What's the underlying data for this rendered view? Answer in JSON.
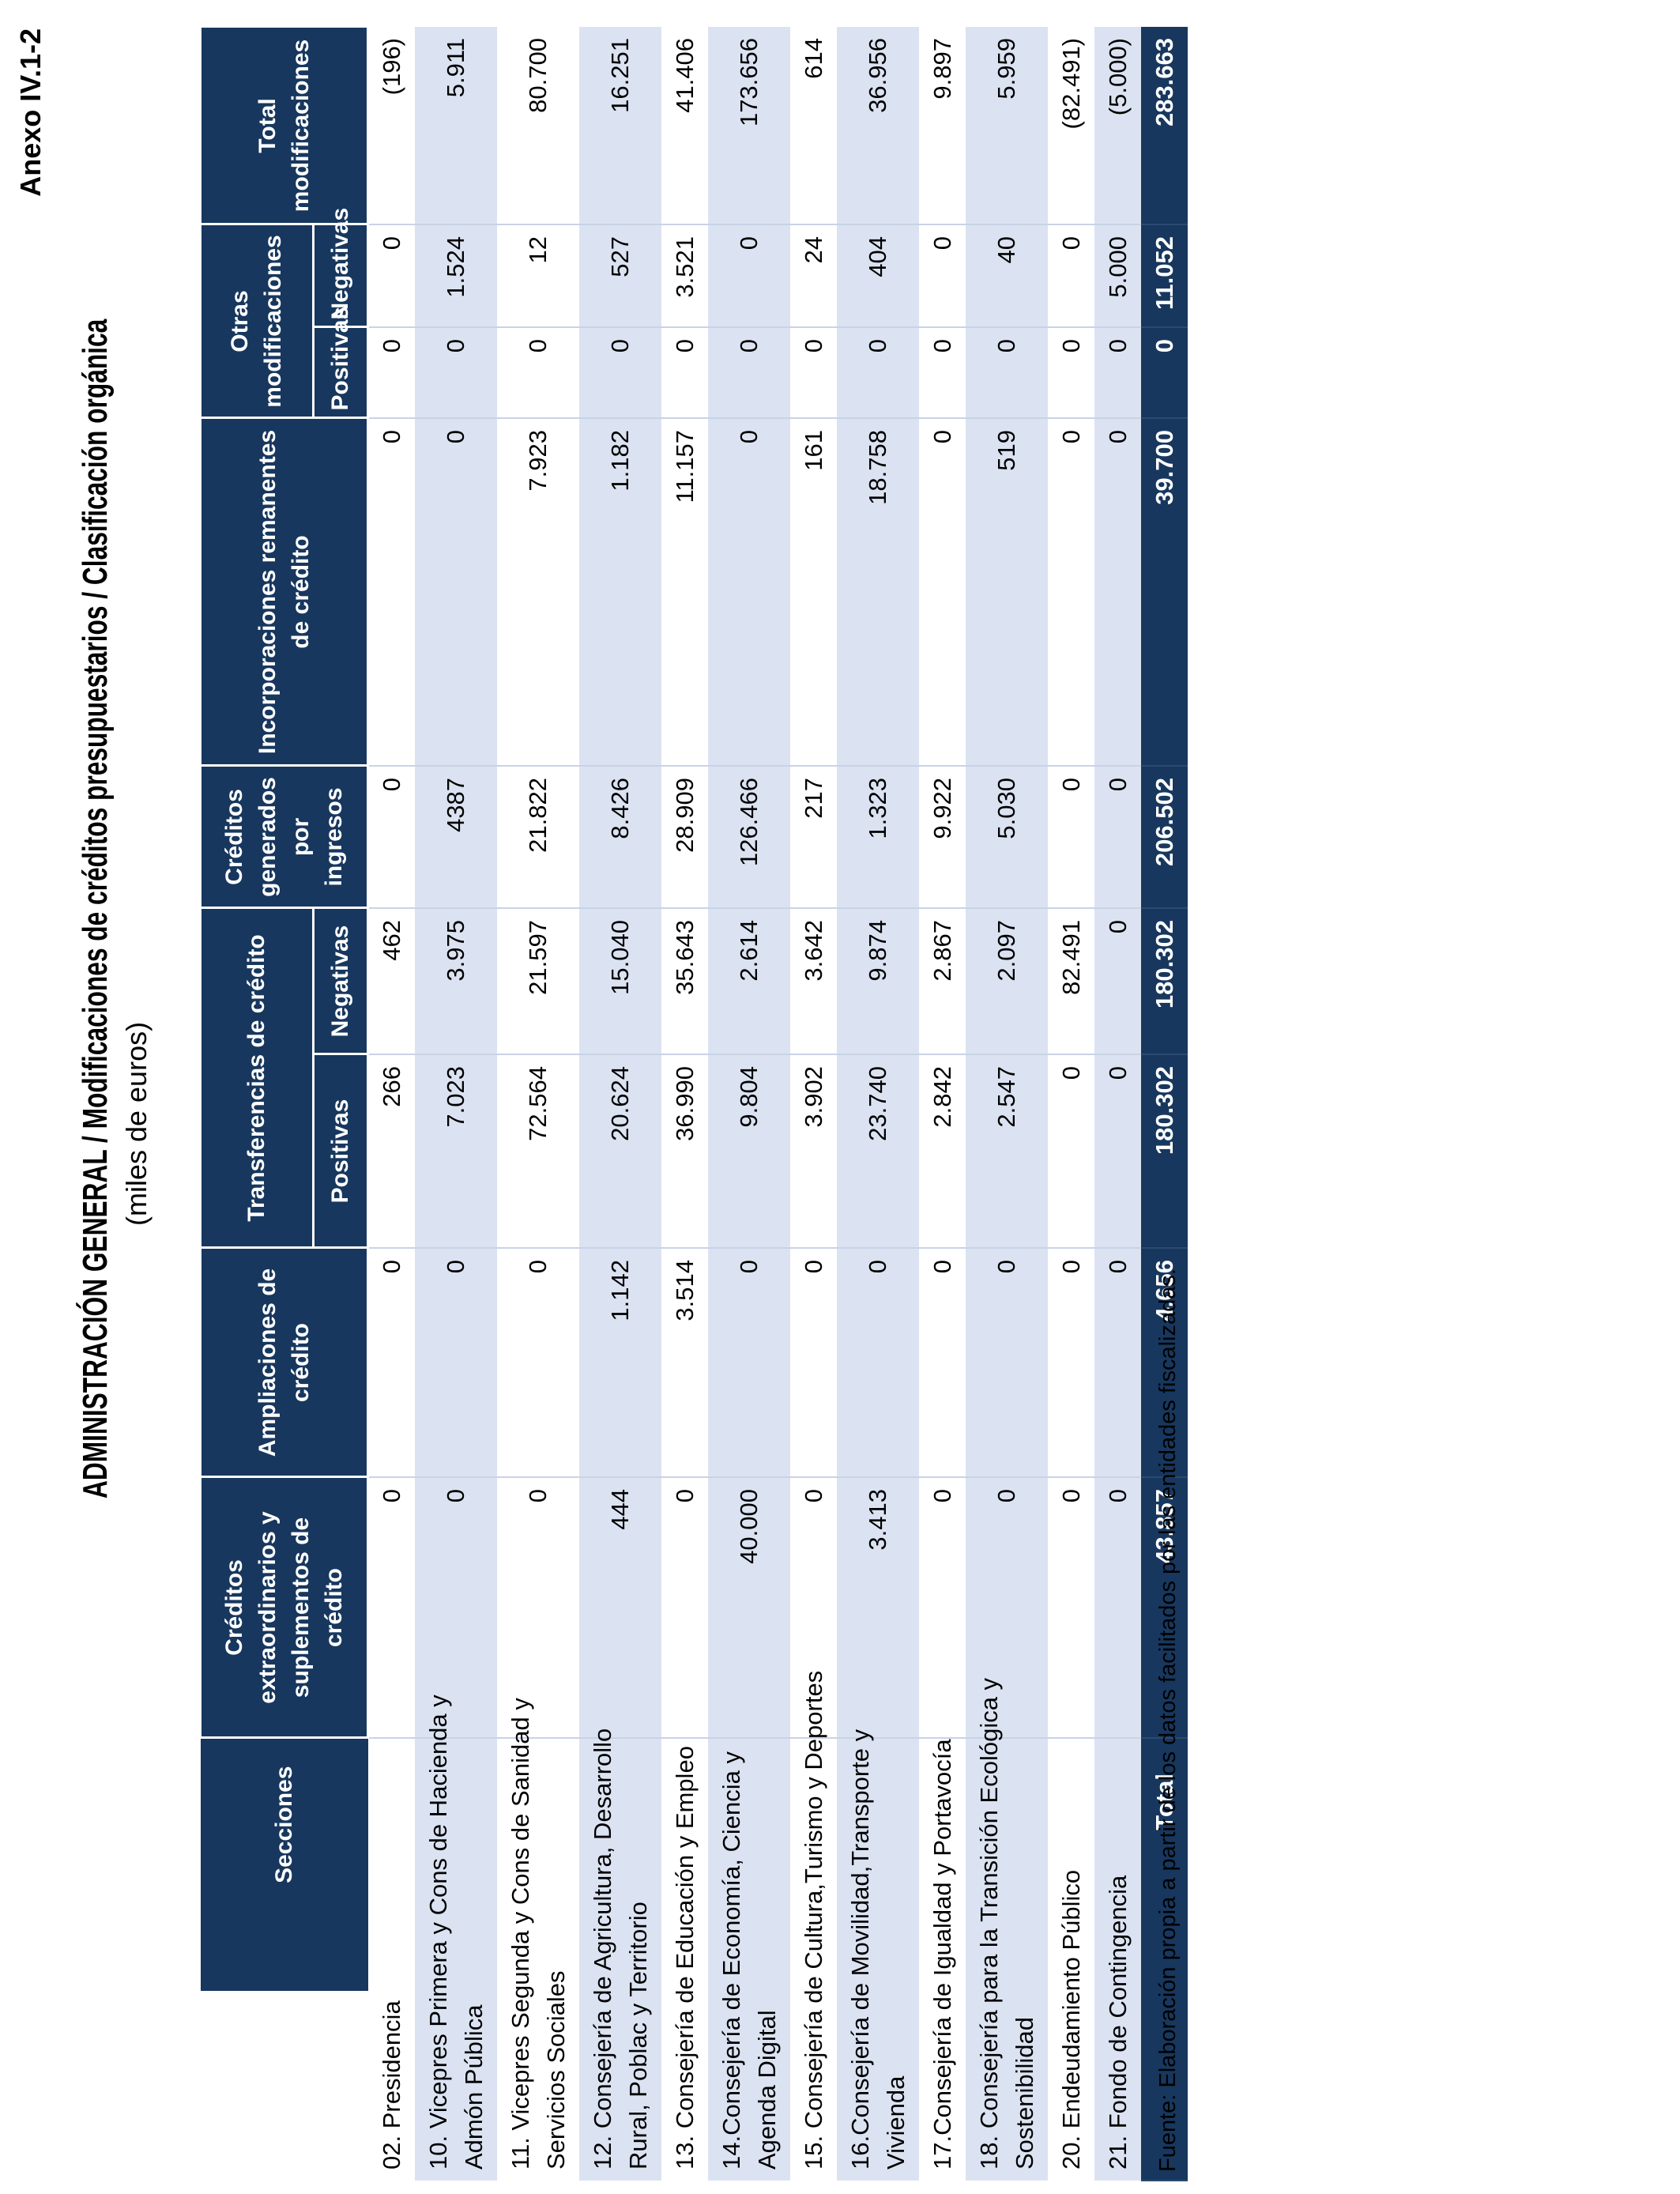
{
  "page": {
    "anexo": "Anexo IV.1-2",
    "title": "ADMINISTRACIÓN GENERAL  /  Modificaciones de créditos presupuestarios  /  Clasificación orgánica",
    "subtitle": "(miles de euros)",
    "footer": "Fuente: Elaboración propia a partir de los datos facilitados por las entidades fiscalizadas."
  },
  "colors": {
    "navy": "#17375e",
    "row_alt": "#dbe3f2",
    "grid": "#c9d3e6"
  },
  "table": {
    "headers": {
      "secciones": "Secciones",
      "cred_ext": "Créditos extraordinarios y suplementos de crédito",
      "ampliaciones": "Ampliaciones de crédito",
      "transferencias": "Transferencias de crédito",
      "cred_gen": "Créditos generados por ingresos",
      "incorporaciones": "Incorporaciones remanentes de crédito",
      "otras": "Otras modificaciones",
      "total": "Total modificaciones",
      "sub_positivas": "Positivas",
      "sub_negativas": "Negativas"
    },
    "column_keys": [
      "cred-ext",
      "ampliaciones",
      "trans-pos",
      "trans-neg",
      "cred-gen",
      "incorporaciones",
      "otras-pos",
      "otras-neg",
      "total-modificaciones"
    ],
    "rows": [
      {
        "name": "02. Presidencia",
        "values": [
          "0",
          "0",
          "266",
          "462",
          "0",
          "0",
          "0",
          "0",
          "(196)"
        ]
      },
      {
        "name": "10. Vicepres Primera y Cons de Hacienda y\nAdmón Pública",
        "values": [
          "0",
          "0",
          "7.023",
          "3.975",
          "4387",
          "0",
          "0",
          "1.524",
          "5.911"
        ]
      },
      {
        "name": "11. Vicepres Segunda y Cons de Sanidad y\nServicios Sociales",
        "values": [
          "0",
          "0",
          "72.564",
          "21.597",
          "21.822",
          "7.923",
          "0",
          "12",
          "80.700"
        ]
      },
      {
        "name": "12. Consejería de Agricultura, Desarrollo\nRural, Poblac y Territorio",
        "values": [
          "444",
          "1.142",
          "20.624",
          "15.040",
          "8.426",
          "1.182",
          "0",
          "527",
          "16.251"
        ]
      },
      {
        "name": "13. Consejería de Educación y Empleo",
        "values": [
          "0",
          "3.514",
          "36.990",
          "35.643",
          "28.909",
          "11.157",
          "0",
          "3.521",
          "41.406"
        ]
      },
      {
        "name": "14.Consejería de Economía, Ciencia y\nAgenda Digital",
        "values": [
          "40.000",
          "0",
          "9.804",
          "2.614",
          "126.466",
          "0",
          "0",
          "0",
          "173.656"
        ]
      },
      {
        "name": "15. Consejería de Cultura,Turismo y Deportes",
        "values": [
          "0",
          "0",
          "3.902",
          "3.642",
          "217",
          "161",
          "0",
          "24",
          "614"
        ]
      },
      {
        "name": "16.Consejería de Movilidad,Transporte y\nVivienda",
        "values": [
          "3.413",
          "0",
          "23.740",
          "9.874",
          "1.323",
          "18.758",
          "0",
          "404",
          "36.956"
        ]
      },
      {
        "name": "17.Consejería de Igualdad y Portavocía",
        "values": [
          "0",
          "0",
          "2.842",
          "2.867",
          "9.922",
          "0",
          "0",
          "0",
          "9.897"
        ]
      },
      {
        "name": "18. Consejería para la Transición Ecológica y\nSostenibilidad",
        "values": [
          "0",
          "0",
          "2.547",
          "2.097",
          "5.030",
          "519",
          "0",
          "40",
          "5.959"
        ]
      },
      {
        "name": "20. Endeudamiento Público",
        "values": [
          "0",
          "0",
          "0",
          "82.491",
          "0",
          "0",
          "0",
          "0",
          "(82.491)"
        ]
      },
      {
        "name": "21. Fondo de Contingencia",
        "values": [
          "0",
          "0",
          "0",
          "0",
          "0",
          "0",
          "0",
          "5.000",
          "(5.000)"
        ]
      }
    ],
    "total_row": {
      "label": "Total",
      "values": [
        "43.857",
        "4.656",
        "180.302",
        "180.302",
        "206.502",
        "39.700",
        "0",
        "11.052",
        "283.663"
      ]
    }
  }
}
